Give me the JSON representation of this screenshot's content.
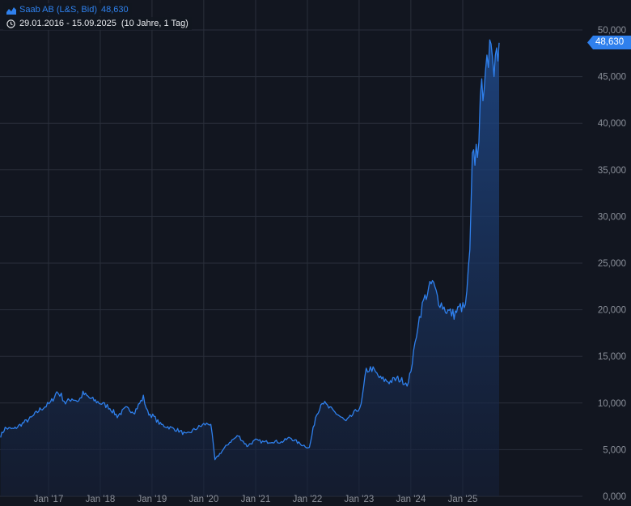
{
  "header": {
    "series_name": "Saab AB (L&S, Bid)",
    "series_value": "48,630",
    "date_range": "29.01.2016 - 15.09.2025",
    "range_extra": "(10 Jahre, 1 Tag)",
    "series_icon": "area-chart-icon",
    "clock_icon": "clock-icon"
  },
  "last_price_label": "48,630",
  "colors": {
    "background": "#121620",
    "line": "#2f80ed",
    "grid": "#2a2f3b",
    "axis_text": "#8b909a",
    "badge": "#2f80ed"
  },
  "chart_data": {
    "type": "area",
    "title": "",
    "xlabel": "",
    "ylabel": "",
    "ylim": [
      0,
      52000
    ],
    "y_ticks": [
      {
        "value": 0,
        "label": "0,000"
      },
      {
        "value": 5000,
        "label": "5,000"
      },
      {
        "value": 10000,
        "label": "10,000"
      },
      {
        "value": 15000,
        "label": "15,000"
      },
      {
        "value": 20000,
        "label": "20,000"
      },
      {
        "value": 25000,
        "label": "25,000"
      },
      {
        "value": 30000,
        "label": "30,000"
      },
      {
        "value": 35000,
        "label": "35,000"
      },
      {
        "value": 40000,
        "label": "40,000"
      },
      {
        "value": 45000,
        "label": "45,000"
      },
      {
        "value": 50000,
        "label": "50,000"
      }
    ],
    "x_ticks": [
      {
        "date": "2017-01-01",
        "label": "Jan '17"
      },
      {
        "date": "2018-01-01",
        "label": "Jan '18"
      },
      {
        "date": "2019-01-01",
        "label": "Jan '19"
      },
      {
        "date": "2020-01-01",
        "label": "Jan '20"
      },
      {
        "date": "2021-01-01",
        "label": "Jan '21"
      },
      {
        "date": "2022-01-01",
        "label": "Jan '22"
      },
      {
        "date": "2023-01-01",
        "label": "Jan '23"
      },
      {
        "date": "2024-01-01",
        "label": "Jan '24"
      },
      {
        "date": "2025-01-01",
        "label": "Jan '25"
      }
    ],
    "x_range": [
      "2016-01-29",
      "2025-09-15"
    ],
    "grid": true,
    "series": [
      {
        "points": [
          [
            "2016-01-29",
            6500
          ],
          [
            "2016-03-01",
            7300
          ],
          [
            "2016-05-01",
            7200
          ],
          [
            "2016-07-01",
            7800
          ],
          [
            "2016-09-01",
            8400
          ],
          [
            "2016-11-01",
            9300
          ],
          [
            "2016-12-15",
            9700
          ],
          [
            "2017-01-15",
            10000
          ],
          [
            "2017-03-01",
            11200
          ],
          [
            "2017-04-01",
            10800
          ],
          [
            "2017-05-01",
            10000
          ],
          [
            "2017-06-15",
            10500
          ],
          [
            "2017-08-01",
            10200
          ],
          [
            "2017-09-01",
            11000
          ],
          [
            "2017-11-01",
            10400
          ],
          [
            "2018-01-01",
            10000
          ],
          [
            "2018-03-01",
            9600
          ],
          [
            "2018-05-01",
            8600
          ],
          [
            "2018-07-01",
            9400
          ],
          [
            "2018-09-01",
            9100
          ],
          [
            "2018-11-01",
            10600
          ],
          [
            "2018-12-01",
            9000
          ],
          [
            "2019-01-15",
            8500
          ],
          [
            "2019-03-01",
            7700
          ],
          [
            "2019-05-01",
            7400
          ],
          [
            "2019-07-01",
            7100
          ],
          [
            "2019-09-01",
            6600
          ],
          [
            "2019-11-01",
            7200
          ],
          [
            "2020-01-01",
            7700
          ],
          [
            "2020-02-20",
            7800
          ],
          [
            "2020-03-20",
            3900
          ],
          [
            "2020-05-01",
            4700
          ],
          [
            "2020-07-01",
            5800
          ],
          [
            "2020-09-01",
            6500
          ],
          [
            "2020-11-01",
            5400
          ],
          [
            "2021-01-01",
            6000
          ],
          [
            "2021-03-01",
            5800
          ],
          [
            "2021-05-01",
            5900
          ],
          [
            "2021-07-01",
            5800
          ],
          [
            "2021-09-01",
            6300
          ],
          [
            "2021-11-01",
            5700
          ],
          [
            "2022-01-15",
            5200
          ],
          [
            "2022-02-28",
            8500
          ],
          [
            "2022-04-15",
            10200
          ],
          [
            "2022-06-01",
            9500
          ],
          [
            "2022-08-01",
            8800
          ],
          [
            "2022-10-01",
            8000
          ],
          [
            "2022-12-15",
            9200
          ],
          [
            "2023-01-15",
            9700
          ],
          [
            "2023-02-20",
            13500
          ],
          [
            "2023-04-01",
            13700
          ],
          [
            "2023-06-01",
            12600
          ],
          [
            "2023-08-01",
            12300
          ],
          [
            "2023-10-01",
            12600
          ],
          [
            "2023-12-15",
            12100
          ],
          [
            "2024-01-20",
            15200
          ],
          [
            "2024-02-20",
            18500
          ],
          [
            "2024-04-01",
            21000
          ],
          [
            "2024-06-01",
            23000
          ],
          [
            "2024-07-15",
            21000
          ],
          [
            "2024-09-01",
            20000
          ],
          [
            "2024-11-01",
            19500
          ],
          [
            "2024-12-15",
            20300
          ],
          [
            "2025-01-20",
            20200
          ],
          [
            "2025-02-20",
            26000
          ],
          [
            "2025-03-10",
            35500
          ],
          [
            "2025-04-15",
            37500
          ],
          [
            "2025-05-15",
            43000
          ],
          [
            "2025-06-10",
            46500
          ],
          [
            "2025-07-01",
            44500
          ],
          [
            "2025-07-20",
            49500
          ],
          [
            "2025-08-10",
            47000
          ],
          [
            "2025-09-15",
            48630
          ]
        ]
      }
    ]
  }
}
